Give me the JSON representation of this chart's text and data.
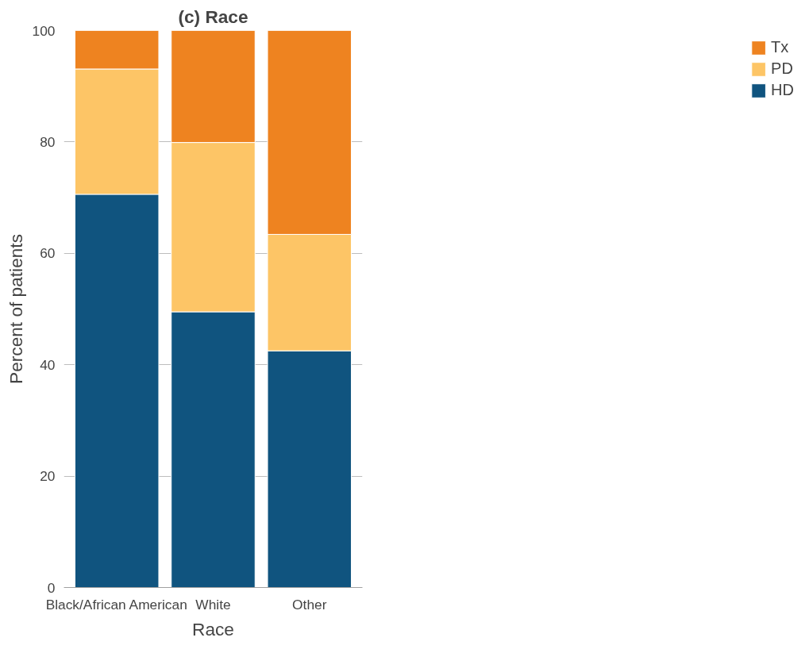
{
  "chart_data": {
    "type": "bar",
    "title": "(c) Race",
    "xlabel": "Race",
    "ylabel": "Percent of patients",
    "categories": [
      "Black/African American",
      "White",
      "Other"
    ],
    "stacked": true,
    "series": [
      {
        "name": "HD",
        "color": "#10547f",
        "values": [
          70.6,
          49.5,
          42.5
        ]
      },
      {
        "name": "PD",
        "color": "#fdc566",
        "values": [
          22.5,
          30.4,
          20.9
        ]
      },
      {
        "name": "Tx",
        "color": "#ee8320",
        "values": [
          6.9,
          20.1,
          36.6
        ]
      }
    ],
    "ylim": [
      0,
      100
    ],
    "yticks": [
      0,
      20,
      40,
      60,
      80,
      100
    ],
    "grid": "y",
    "legend": "right"
  }
}
